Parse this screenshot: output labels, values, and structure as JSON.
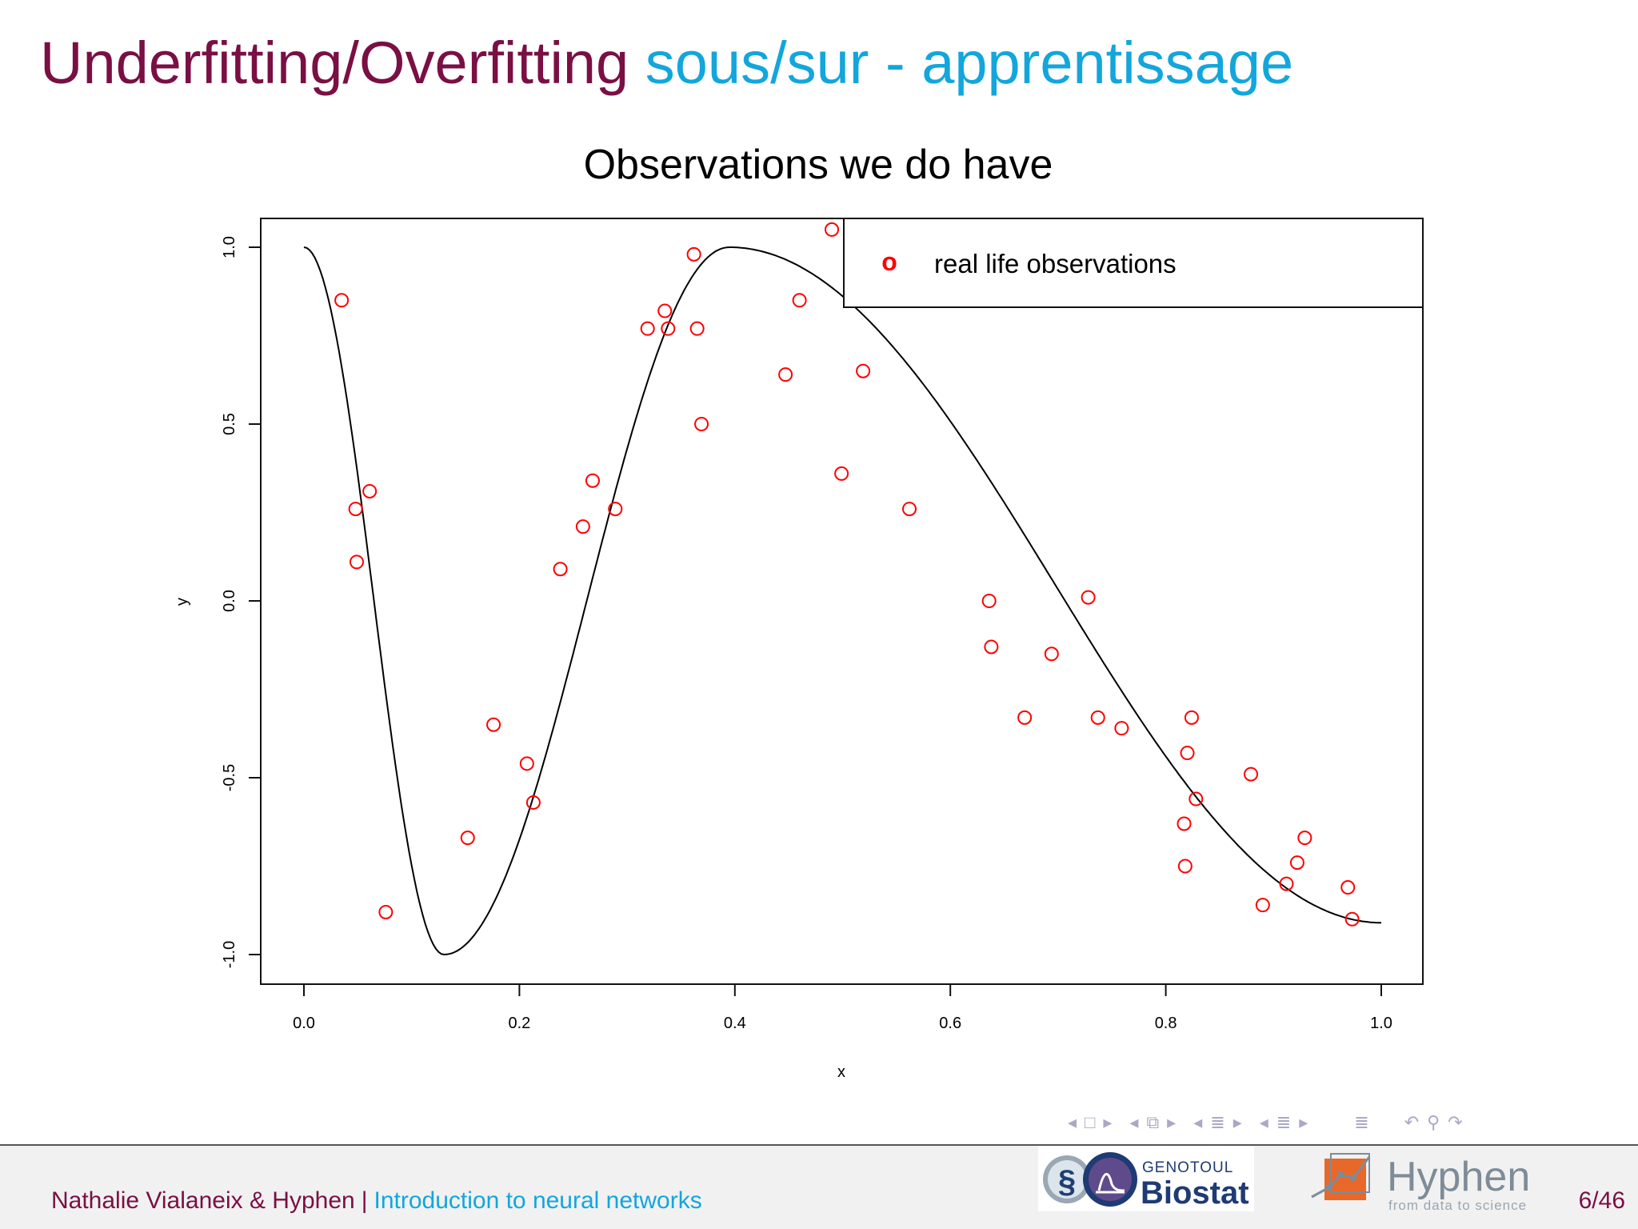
{
  "title": {
    "main": "Underfitting/Overfitting",
    "sub": "sous/sur - apprentissage"
  },
  "chart_data": {
    "type": "scatter",
    "title": "Observations we do have",
    "xlabel": "x",
    "ylabel": "y",
    "xlim": [
      0,
      1
    ],
    "ylim": [
      -1,
      1
    ],
    "x_ticks": [
      "0.0",
      "0.2",
      "0.4",
      "0.6",
      "0.8",
      "1.0"
    ],
    "y_ticks": [
      "-1.0",
      "-0.5",
      "0.0",
      "0.5",
      "1.0"
    ],
    "legend": {
      "position": "top-right",
      "entries": [
        {
          "label": "real life observations",
          "marker": "o",
          "color": "#ff0000"
        }
      ]
    },
    "grid": false,
    "curve": {
      "color": "#000000",
      "description_points": [
        [
          0.0,
          1.0
        ],
        [
          0.13,
          -1.0
        ],
        [
          0.395,
          1.0
        ],
        [
          1.0,
          -0.91
        ]
      ]
    },
    "series": [
      {
        "name": "real life observations",
        "color": "#ff0000",
        "points": [
          [
            0.035,
            0.85
          ],
          [
            0.048,
            0.26
          ],
          [
            0.049,
            0.11
          ],
          [
            0.061,
            0.31
          ],
          [
            0.076,
            -0.88
          ],
          [
            0.152,
            -0.67
          ],
          [
            0.176,
            -0.35
          ],
          [
            0.207,
            -0.46
          ],
          [
            0.213,
            -0.57
          ],
          [
            0.238,
            0.09
          ],
          [
            0.259,
            0.21
          ],
          [
            0.268,
            0.34
          ],
          [
            0.289,
            0.26
          ],
          [
            0.319,
            0.77
          ],
          [
            0.335,
            0.82
          ],
          [
            0.338,
            0.77
          ],
          [
            0.362,
            0.98
          ],
          [
            0.365,
            0.77
          ],
          [
            0.369,
            0.5
          ],
          [
            0.447,
            0.64
          ],
          [
            0.46,
            0.85
          ],
          [
            0.49,
            1.05
          ],
          [
            0.499,
            0.36
          ],
          [
            0.519,
            0.65
          ],
          [
            0.562,
            0.26
          ],
          [
            0.636,
            0.0
          ],
          [
            0.638,
            -0.13
          ],
          [
            0.669,
            -0.33
          ],
          [
            0.694,
            -0.15
          ],
          [
            0.728,
            0.01
          ],
          [
            0.737,
            -0.33
          ],
          [
            0.759,
            -0.36
          ],
          [
            0.817,
            -0.63
          ],
          [
            0.818,
            -0.75
          ],
          [
            0.82,
            -0.43
          ],
          [
            0.824,
            -0.33
          ],
          [
            0.828,
            -0.56
          ],
          [
            0.879,
            -0.49
          ],
          [
            0.89,
            -0.86
          ],
          [
            0.912,
            -0.8
          ],
          [
            0.922,
            -0.74
          ],
          [
            0.929,
            -0.67
          ],
          [
            0.969,
            -0.81
          ],
          [
            0.973,
            -0.9
          ]
        ]
      }
    ]
  },
  "footer": {
    "authors": "Nathalie Vialaneix & Hyphen",
    "separator": "|",
    "course": "Introduction to neural networks",
    "page": "6/46",
    "genotoul_brand": "GENOTOUL",
    "genotoul_name": "Biostat",
    "hyphen_name": "Hyphen",
    "hyphen_tagline": "from data to science"
  },
  "colors": {
    "title_main": "#7a0f44",
    "title_sub": "#12a6dc",
    "points": "#ff0000",
    "nav": "#a9a9c6"
  },
  "nav_icons": [
    "arrow-left-icon",
    "frame-icon",
    "arrow-right-icon",
    "subsection-icon",
    "section-icon",
    "align-icon",
    "undo-icon",
    "search-icon",
    "redo-icon"
  ]
}
